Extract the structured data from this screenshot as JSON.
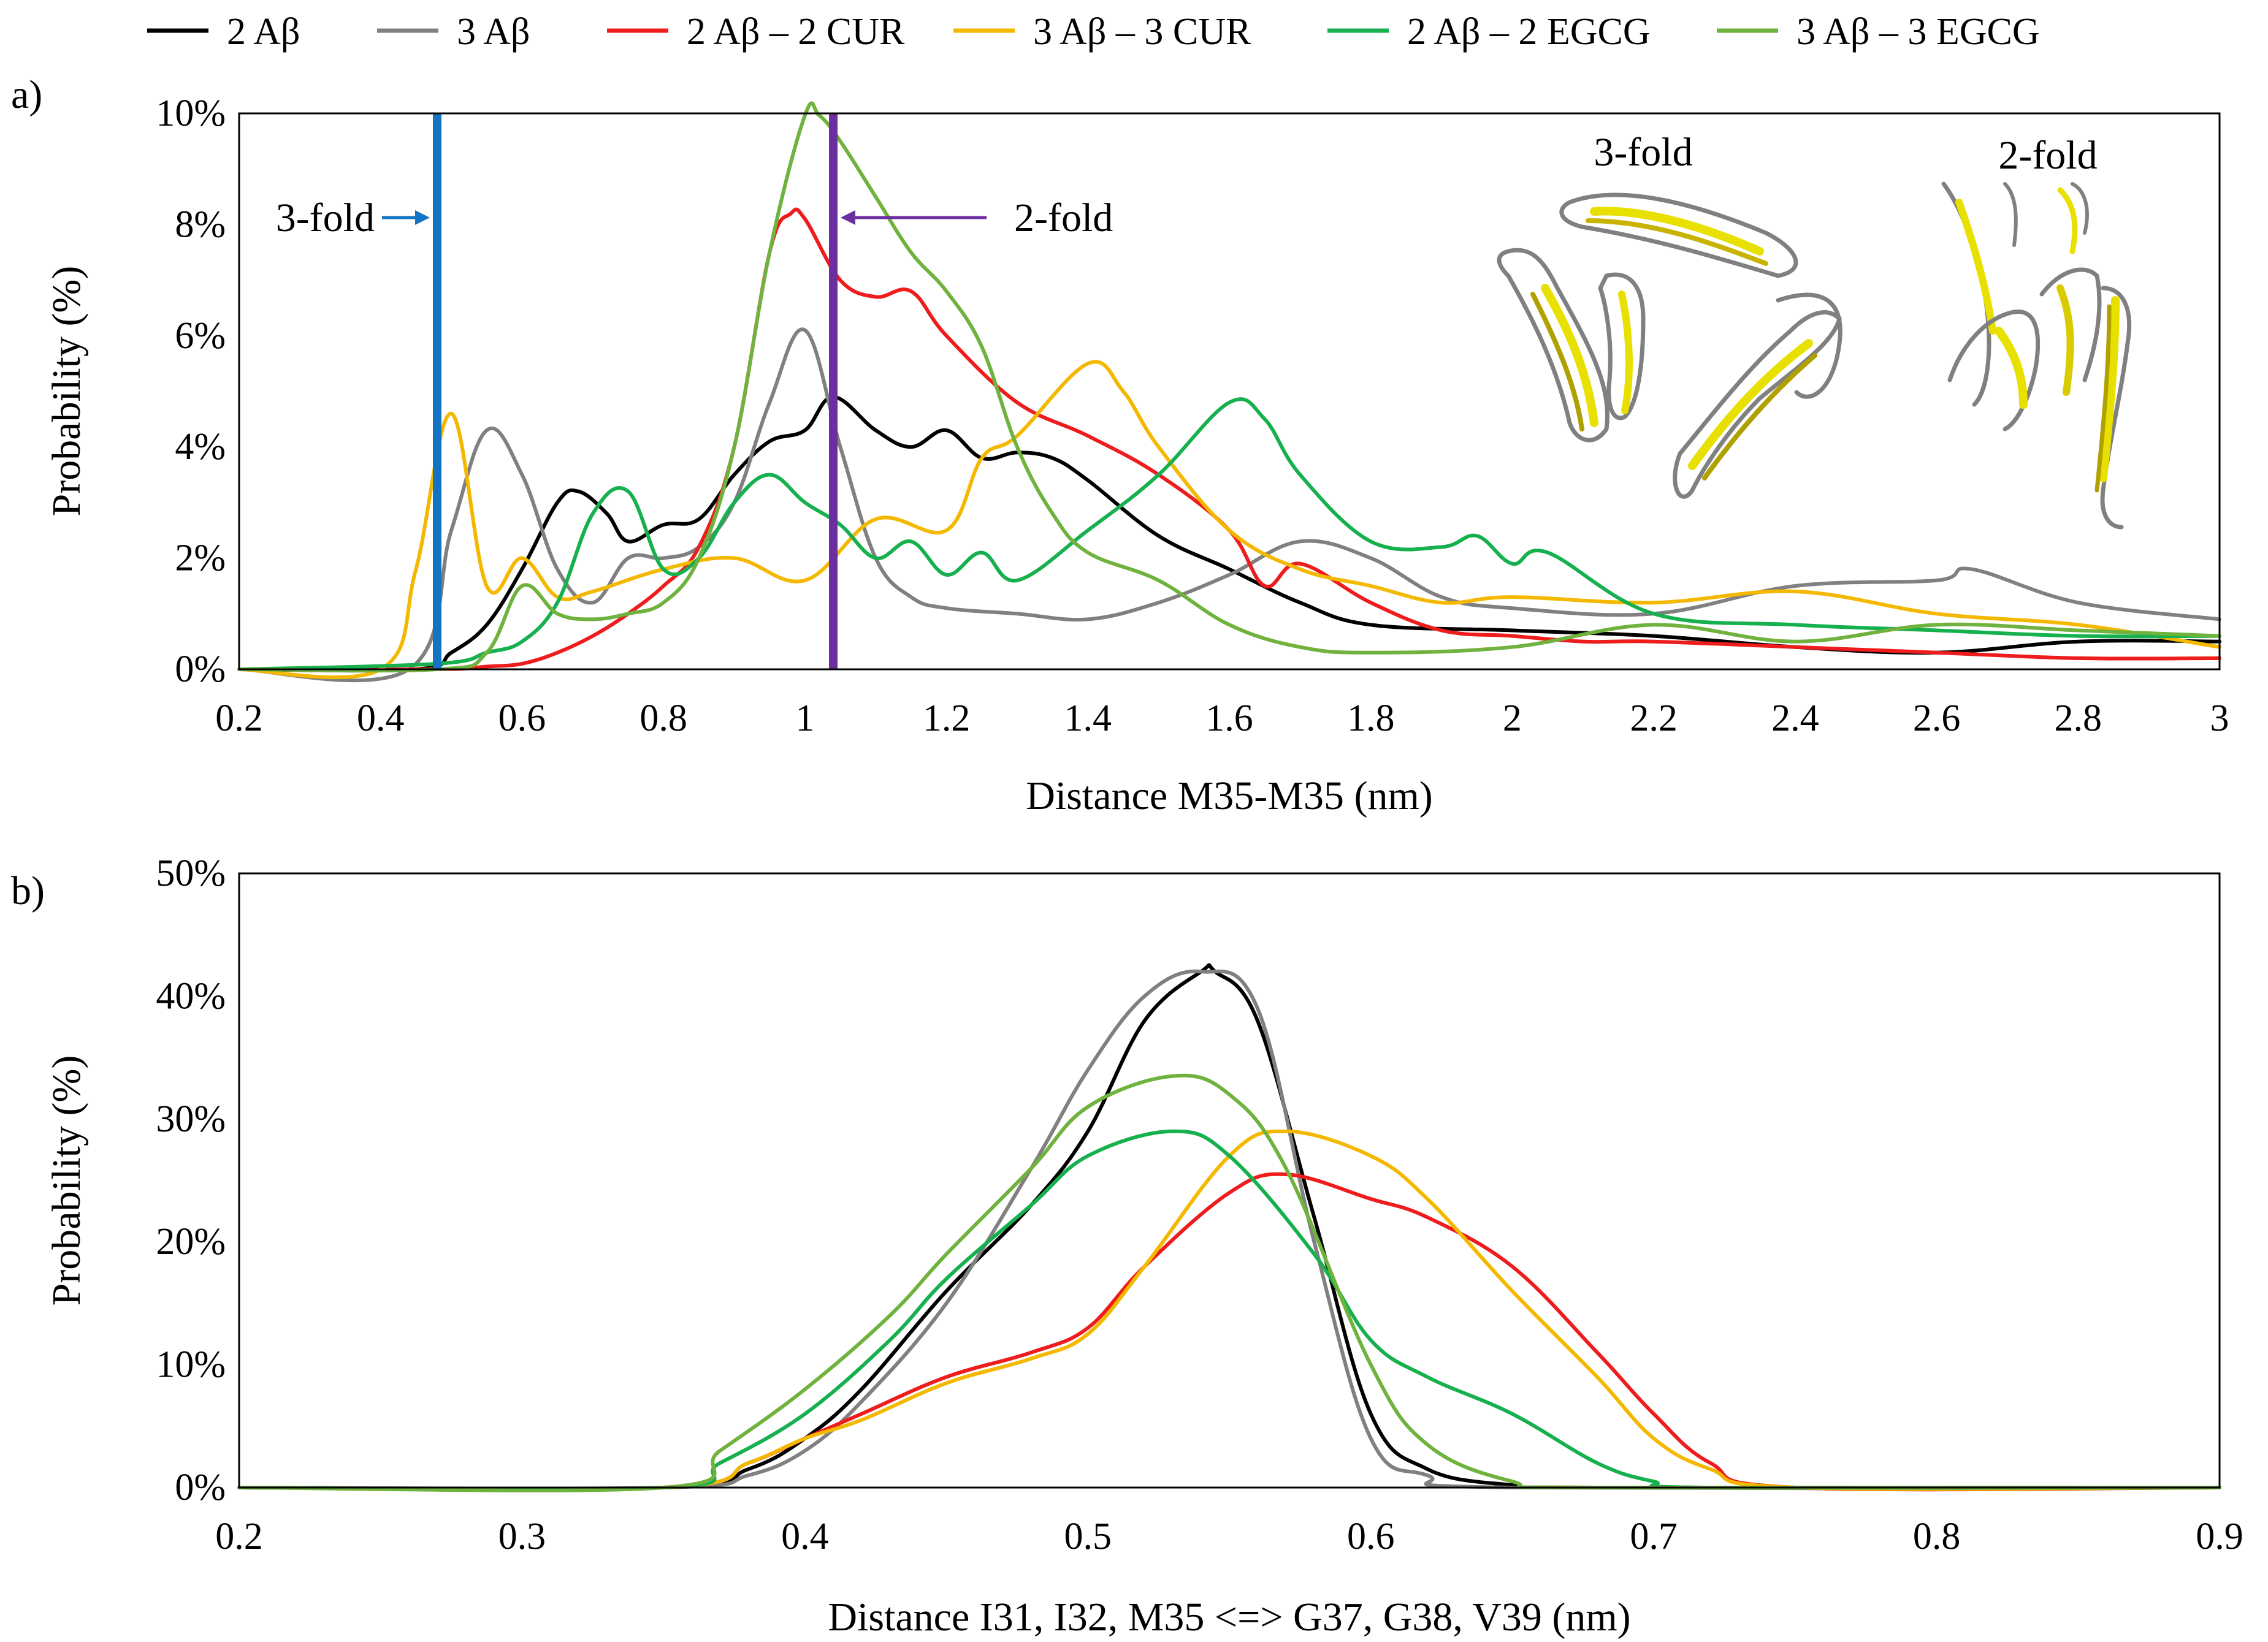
{
  "legend": [
    {
      "key": "s1",
      "label": "2 Aβ",
      "color": "#000000"
    },
    {
      "key": "s2",
      "label": "3 Aβ",
      "color": "#808080"
    },
    {
      "key": "s3",
      "label": "2 Aβ – 2 CUR",
      "color": "#ee1c1c"
    },
    {
      "key": "s4",
      "label": "3 Aβ – 3 CUR",
      "color": "#f5b800"
    },
    {
      "key": "s5",
      "label": "2 Aβ – 2 EGCG",
      "color": "#16b04e"
    },
    {
      "key": "s6",
      "label": "3 Aβ – 3 EGCG",
      "color": "#6fb23e"
    }
  ],
  "chart_data": [
    {
      "id": "a",
      "type": "line",
      "panel_label": "a)",
      "xlabel": "Distance M35-M35 (nm)",
      "ylabel": "Probability (%)",
      "xlim": [
        0.2,
        3.0
      ],
      "ylim": [
        0,
        10
      ],
      "xticks": [
        0.2,
        0.4,
        0.6,
        0.8,
        1,
        1.2,
        1.4,
        1.6,
        1.8,
        2,
        2.2,
        2.4,
        2.6,
        2.8,
        3
      ],
      "xtick_labels": [
        "0.2",
        "0.4",
        "0.6",
        "0.8",
        "1",
        "1.2",
        "1.4",
        "1.6",
        "1.8",
        "2",
        "2.2",
        "2.4",
        "2.6",
        "2.8",
        "3"
      ],
      "yticks": [
        0,
        2,
        4,
        6,
        8,
        10
      ],
      "ytick_labels": [
        "0%",
        "2%",
        "4%",
        "6%",
        "8%",
        "10%"
      ],
      "markers": [
        {
          "name": "3-fold",
          "x": 0.48,
          "color": "#1474c4",
          "label": "3-fold",
          "label_side": "left"
        },
        {
          "name": "2-fold",
          "x": 1.04,
          "color": "#6b2fa0",
          "label": "2-fold",
          "label_side": "right"
        }
      ],
      "inset_labels": [
        "3-fold",
        "2-fold"
      ],
      "series": [
        {
          "key": "s1",
          "name": "2 Aβ",
          "x": [
            0.2,
            0.45,
            0.5,
            0.55,
            0.6,
            0.65,
            0.68,
            0.72,
            0.75,
            0.8,
            0.85,
            0.9,
            0.95,
            1.0,
            1.04,
            1.1,
            1.15,
            1.2,
            1.25,
            1.3,
            1.35,
            1.4,
            1.5,
            1.6,
            1.7,
            1.8,
            2.0,
            2.2,
            2.4,
            2.6,
            2.8,
            3.0
          ],
          "y": [
            0,
            0,
            0.3,
            0.8,
            1.8,
            3.0,
            3.2,
            2.8,
            2.3,
            2.6,
            2.7,
            3.5,
            4.1,
            4.3,
            4.9,
            4.3,
            4.0,
            4.3,
            3.8,
            3.9,
            3.8,
            3.4,
            2.4,
            1.8,
            1.2,
            0.8,
            0.7,
            0.6,
            0.4,
            0.3,
            0.5,
            0.5
          ]
        },
        {
          "key": "s2",
          "name": "3 Aβ",
          "x": [
            0.2,
            0.44,
            0.5,
            0.55,
            0.6,
            0.65,
            0.7,
            0.75,
            0.8,
            0.85,
            0.9,
            0.95,
            1.0,
            1.05,
            1.1,
            1.15,
            1.2,
            1.3,
            1.4,
            1.5,
            1.6,
            1.7,
            1.8,
            1.9,
            2.0,
            2.2,
            2.4,
            2.6,
            2.65,
            2.8,
            3.0
          ],
          "y": [
            0,
            0,
            2.5,
            4.3,
            3.5,
            1.8,
            1.2,
            2.0,
            2.0,
            2.2,
            3.0,
            4.8,
            6.1,
            4.0,
            2.0,
            1.3,
            1.1,
            1.0,
            0.9,
            1.2,
            1.7,
            2.3,
            2.0,
            1.3,
            1.1,
            1.0,
            1.5,
            1.6,
            1.8,
            1.2,
            0.9
          ]
        },
        {
          "key": "s3",
          "name": "2 Aβ – 2 CUR",
          "x": [
            0.2,
            0.48,
            0.55,
            0.6,
            0.65,
            0.7,
            0.75,
            0.8,
            0.85,
            0.9,
            0.95,
            0.98,
            1.0,
            1.05,
            1.1,
            1.15,
            1.2,
            1.3,
            1.4,
            1.5,
            1.6,
            1.65,
            1.7,
            1.8,
            1.9,
            2.0,
            2.1,
            2.2,
            2.4,
            2.6,
            2.8,
            3.0
          ],
          "y": [
            0,
            0,
            0.05,
            0.1,
            0.3,
            0.6,
            1.0,
            1.5,
            2.2,
            4.0,
            7.5,
            8.2,
            8.1,
            7.0,
            6.7,
            6.8,
            6.0,
            4.8,
            4.2,
            3.5,
            2.5,
            1.5,
            1.9,
            1.2,
            0.7,
            0.6,
            0.5,
            0.5,
            0.4,
            0.3,
            0.2,
            0.2
          ]
        },
        {
          "key": "s4",
          "name": "3 Aβ – 3 CUR",
          "x": [
            0.2,
            0.4,
            0.45,
            0.5,
            0.55,
            0.6,
            0.65,
            0.7,
            0.8,
            0.9,
            1.0,
            1.1,
            1.2,
            1.25,
            1.3,
            1.4,
            1.45,
            1.5,
            1.6,
            1.7,
            1.8,
            1.9,
            2.0,
            2.2,
            2.4,
            2.6,
            2.8,
            3.0
          ],
          "y": [
            0,
            0,
            1.8,
            4.6,
            1.5,
            2.0,
            1.3,
            1.4,
            1.8,
            2.0,
            1.6,
            2.7,
            2.5,
            3.8,
            4.2,
            5.5,
            5.0,
            4.0,
            2.5,
            1.8,
            1.5,
            1.2,
            1.3,
            1.2,
            1.4,
            1.0,
            0.8,
            0.4
          ]
        },
        {
          "key": "s5",
          "name": "2 Aβ – 2 EGCG",
          "x": [
            0.2,
            0.48,
            0.55,
            0.6,
            0.65,
            0.7,
            0.75,
            0.8,
            0.85,
            0.9,
            0.95,
            1.0,
            1.05,
            1.1,
            1.15,
            1.2,
            1.25,
            1.3,
            1.4,
            1.5,
            1.6,
            1.65,
            1.7,
            1.8,
            1.9,
            1.95,
            2.0,
            2.05,
            2.2,
            2.4,
            2.6,
            2.8,
            3.0
          ],
          "y": [
            0,
            0.1,
            0.3,
            0.5,
            1.2,
            2.8,
            3.2,
            1.8,
            2.0,
            3.0,
            3.5,
            3.0,
            2.6,
            2.0,
            2.3,
            1.7,
            2.1,
            1.6,
            2.5,
            3.5,
            4.8,
            4.5,
            3.5,
            2.3,
            2.2,
            2.4,
            1.9,
            2.1,
            1.0,
            0.8,
            0.7,
            0.6,
            0.6
          ]
        },
        {
          "key": "s6",
          "name": "3 Aβ – 3 EGCG",
          "x": [
            0.2,
            0.48,
            0.55,
            0.6,
            0.65,
            0.7,
            0.75,
            0.8,
            0.85,
            0.9,
            0.95,
            1.0,
            1.02,
            1.05,
            1.1,
            1.15,
            1.2,
            1.25,
            1.3,
            1.35,
            1.4,
            1.5,
            1.6,
            1.7,
            1.8,
            2.0,
            2.2,
            2.4,
            2.6,
            2.8,
            3.0
          ],
          "y": [
            0,
            0,
            0.3,
            1.5,
            1.0,
            0.9,
            1.0,
            1.2,
            2.0,
            4.0,
            7.5,
            10.0,
            10.0,
            9.5,
            8.5,
            7.5,
            6.8,
            5.8,
            4.0,
            2.8,
            2.1,
            1.6,
            0.8,
            0.4,
            0.3,
            0.4,
            0.8,
            0.5,
            0.8,
            0.7,
            0.6
          ]
        }
      ]
    },
    {
      "id": "b",
      "type": "line",
      "panel_label": "b)",
      "xlabel": "Distance I31, I32, M35 <=> G37, G38, V39 (nm)",
      "ylabel": "Probability (%)",
      "xlim": [
        0.2,
        0.9
      ],
      "ylim": [
        0,
        50
      ],
      "xticks": [
        0.2,
        0.3,
        0.4,
        0.5,
        0.6,
        0.7,
        0.8,
        0.9
      ],
      "xtick_labels": [
        "0.2",
        "0.3",
        "0.4",
        "0.5",
        "0.6",
        "0.7",
        "0.8",
        "0.9"
      ],
      "yticks": [
        0,
        10,
        20,
        30,
        40,
        50
      ],
      "ytick_labels": [
        "0%",
        "10%",
        "20%",
        "30%",
        "40%",
        "50%"
      ],
      "series": [
        {
          "key": "s1",
          "name": "2 Aβ",
          "x": [
            0.2,
            0.35,
            0.38,
            0.4,
            0.42,
            0.45,
            0.48,
            0.5,
            0.52,
            0.54,
            0.545,
            0.56,
            0.58,
            0.6,
            0.62,
            0.65,
            0.68,
            0.9
          ],
          "y": [
            0,
            0,
            1.5,
            4,
            8,
            16,
            23,
            29,
            38,
            42,
            42,
            38,
            22,
            6,
            1.5,
            0.2,
            0,
            0
          ]
        },
        {
          "key": "s2",
          "name": "3 Aβ",
          "x": [
            0.2,
            0.35,
            0.38,
            0.4,
            0.42,
            0.45,
            0.48,
            0.5,
            0.52,
            0.54,
            0.56,
            0.58,
            0.6,
            0.62,
            0.65,
            0.9
          ],
          "y": [
            0,
            0,
            1,
            3,
            7,
            15,
            26,
            34,
            40,
            42,
            39,
            20,
            4,
            1,
            0,
            0
          ]
        },
        {
          "key": "s3",
          "name": "2 Aβ – 2 CUR",
          "x": [
            0.2,
            0.35,
            0.38,
            0.4,
            0.42,
            0.45,
            0.48,
            0.5,
            0.52,
            0.55,
            0.57,
            0.6,
            0.62,
            0.65,
            0.68,
            0.7,
            0.72,
            0.75,
            0.9
          ],
          "y": [
            0,
            0,
            2,
            4,
            6,
            9,
            11,
            13,
            18,
            24,
            25.5,
            23.5,
            22,
            18,
            11,
            6,
            2,
            0,
            0
          ]
        },
        {
          "key": "s4",
          "name": "3 Aβ – 3 CUR",
          "x": [
            0.2,
            0.35,
            0.38,
            0.4,
            0.42,
            0.45,
            0.48,
            0.5,
            0.52,
            0.55,
            0.57,
            0.6,
            0.62,
            0.65,
            0.68,
            0.7,
            0.72,
            0.75,
            0.9
          ],
          "y": [
            0,
            0,
            2,
            4,
            5.5,
            8.5,
            10.5,
            12.5,
            18,
            27,
            29,
            27,
            23.5,
            16,
            9,
            4,
            1.5,
            0,
            0
          ]
        },
        {
          "key": "s5",
          "name": "2 Aβ – 2 EGCG",
          "x": [
            0.2,
            0.35,
            0.37,
            0.4,
            0.43,
            0.45,
            0.48,
            0.5,
            0.53,
            0.55,
            0.58,
            0.6,
            0.62,
            0.65,
            0.68,
            0.7,
            0.72,
            0.9
          ],
          "y": [
            0,
            0,
            2,
            6,
            12,
            17,
            23,
            27,
            29,
            27,
            19,
            12,
            9,
            6,
            2,
            0.5,
            0,
            0
          ]
        },
        {
          "key": "s6",
          "name": "3 Aβ – 3 EGCG",
          "x": [
            0.2,
            0.35,
            0.37,
            0.4,
            0.43,
            0.45,
            0.48,
            0.5,
            0.53,
            0.55,
            0.57,
            0.6,
            0.62,
            0.65,
            0.68,
            0.9
          ],
          "y": [
            0,
            0,
            3,
            8,
            14,
            19,
            26,
            31,
            33.5,
            32,
            26,
            10,
            3.5,
            0.5,
            0,
            0
          ]
        }
      ]
    }
  ]
}
